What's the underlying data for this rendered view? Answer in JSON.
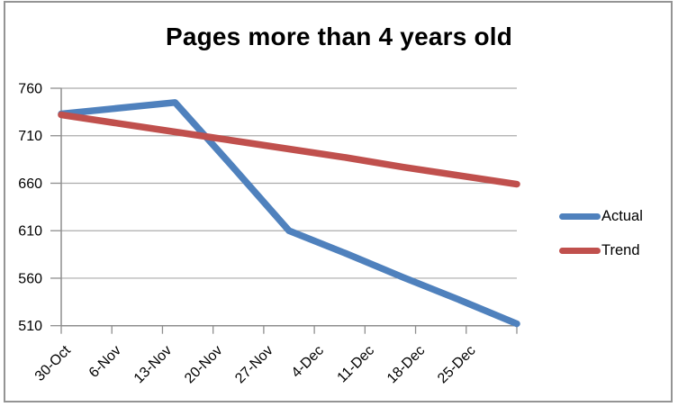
{
  "chart_data": {
    "type": "line",
    "title": "Pages more than 4 years old",
    "categories": [
      "30-Oct",
      "6-Nov",
      "13-Nov",
      "20-Nov",
      "27-Nov",
      "4-Dec",
      "11-Dec",
      "18-Dec",
      "25-Dec"
    ],
    "series": [
      {
        "name": "Actual",
        "color": "#4F81BD",
        "values": [
          733,
          739,
          745,
          678,
          610,
          586,
          561,
          537,
          512
        ]
      },
      {
        "name": "Trend",
        "color": "#C0504D",
        "values": [
          732,
          723,
          714,
          705,
          696,
          687,
          677,
          668,
          659
        ]
      }
    ],
    "xlabel": "",
    "ylabel": "",
    "ylim": [
      510,
      760
    ],
    "y_ticks": [
      760,
      710,
      660,
      610,
      560,
      510
    ],
    "grid": true,
    "legend_position": "right",
    "x_label_rotation_deg": -45
  },
  "style": {
    "gridline_color": "#ABABAB",
    "axis_color": "#8E8E8E",
    "tick_color": "#8E8E8E",
    "border_color": "#949494",
    "text_color": "#000000",
    "background": "#FFFFFF",
    "line_width": 7.5
  }
}
